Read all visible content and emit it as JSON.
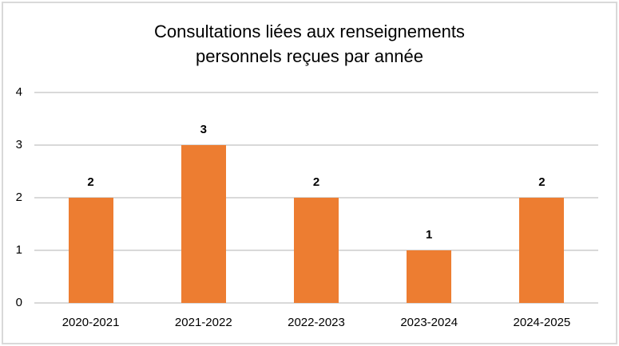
{
  "chart_data": {
    "type": "bar",
    "title": "Consultations liées aux renseignements personnels reçues par année",
    "title_lines": [
      "Consultations liées aux renseignements",
      "personnels reçues par année"
    ],
    "categories": [
      "2020-2021",
      "2021-2022",
      "2022-2023",
      "2023-2024",
      "2024-2025"
    ],
    "values": [
      2,
      3,
      2,
      1,
      2
    ],
    "xlabel": "",
    "ylabel": "",
    "y_ticks": [
      0,
      1,
      2,
      3,
      4
    ],
    "ylim": [
      0,
      4
    ],
    "grid": "horizontal",
    "legend": "none",
    "colors": {
      "bar": "#ED7D31",
      "gridline": "#D9D9D9",
      "border": "#D9D9D9",
      "text": "#000000",
      "background": "#FFFFFF"
    }
  }
}
